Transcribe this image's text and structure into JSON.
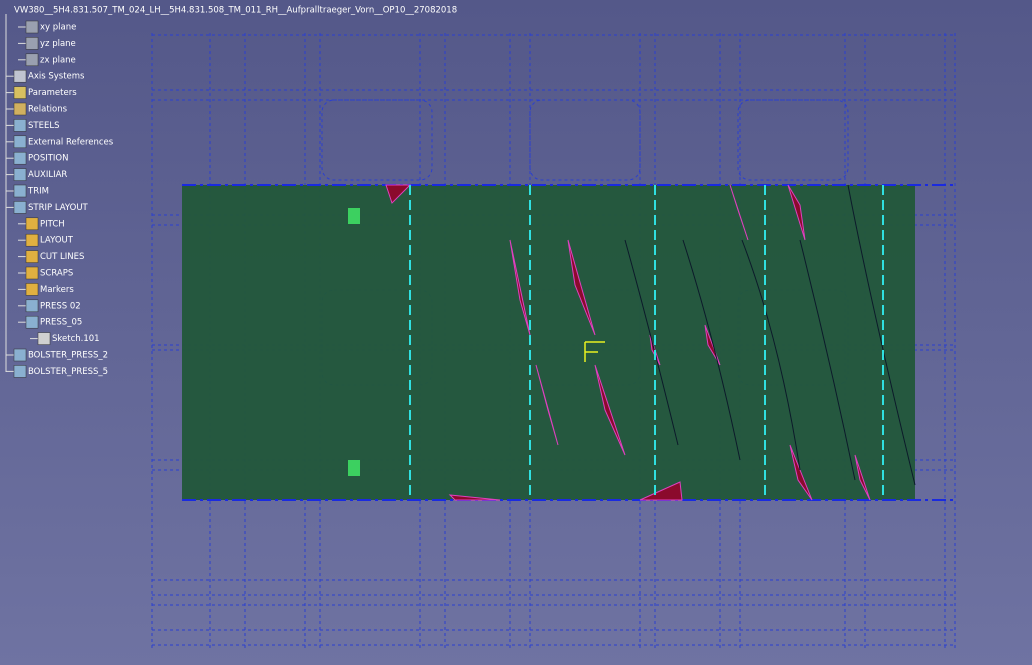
{
  "tree": {
    "root": "VW380__5H4.831.507_TM_024_LH__5H4.831.508_TM_011_RH__Aufpralltraeger_Vorn__OP10__27082018",
    "items": [
      "xy plane",
      "yz plane",
      "zx plane",
      "Axis Systems",
      "Parameters",
      "Relations",
      "STEELS",
      "External References",
      "POSITION",
      "AUXILIAR",
      "TRIM",
      "STRIP LAYOUT",
      "PITCH",
      "LAYOUT",
      "CUT LINES",
      "SCRAPS",
      "Markers",
      "PRESS 02",
      "PRESS_05",
      "Sketch.101",
      "BOLSTER_PRESS_2",
      "BOLSTER_PRESS_5"
    ]
  }
}
